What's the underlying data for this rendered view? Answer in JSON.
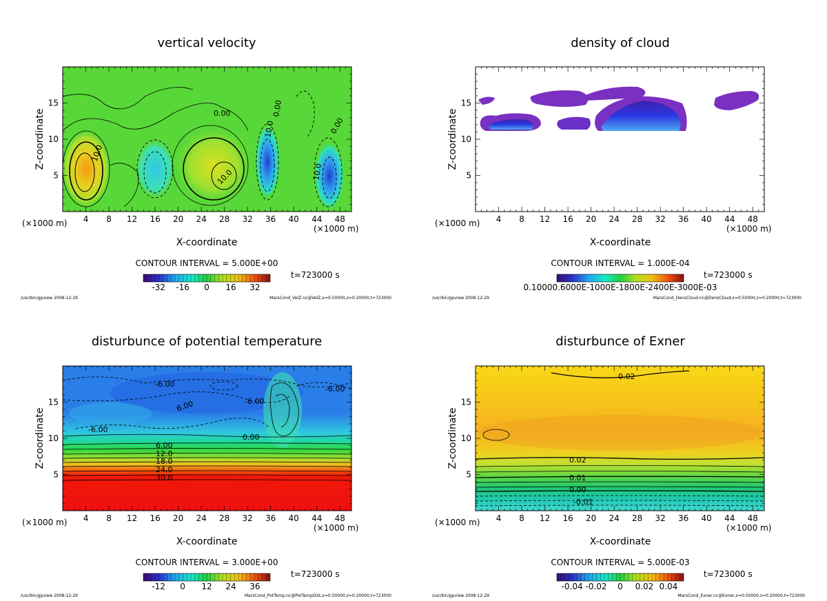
{
  "chart_data": [
    {
      "type": "heatmap",
      "title": "vertical velocity",
      "xlabel": "X-coordinate",
      "ylabel": "Z-coordinate",
      "x_unit_left": "(×1000 m)",
      "x_unit_right": "(×1000 m)",
      "xlim": [
        0,
        50
      ],
      "ylim": [
        0,
        20
      ],
      "xticks": [
        4,
        8,
        12,
        16,
        20,
        24,
        28,
        32,
        36,
        40,
        44,
        48
      ],
      "yticks": [
        5,
        10,
        15
      ],
      "contour_labels": [
        "10.0",
        "10.0",
        "0.00",
        "10.0",
        "10.0",
        "0.00",
        "0.00"
      ],
      "contour_interval": "CONTOUR INTERVAL = 5.000E+00",
      "time": "t=723000 s",
      "colorbar_ticks": [
        "-32",
        "-16",
        "0",
        "16",
        "32"
      ],
      "footer_left": "/usr/bin/gpview  2008-12-29",
      "footer_right": "MarsCond_VelZ.nc@VelZ,x=0:50000,z=0:20000,t=723000"
    },
    {
      "type": "heatmap",
      "title": "density of cloud",
      "xlabel": "X-coordinate",
      "ylabel": "Z-coordinate",
      "x_unit_left": "(×1000 m)",
      "x_unit_right": "(×1000 m)",
      "xlim": [
        0,
        50
      ],
      "ylim": [
        0,
        20
      ],
      "xticks": [
        4,
        8,
        12,
        16,
        20,
        24,
        28,
        32,
        36,
        40,
        44,
        48
      ],
      "yticks": [
        5,
        10,
        15
      ],
      "contour_interval": "CONTOUR INTERVAL = 1.000E-04",
      "time": "t=723000 s",
      "colorbar_ticks_text": "0.10000.6000E-1000E-1800E-2400E-3000E-03",
      "footer_left": "/usr/bin/gpview  2008-12-29",
      "footer_right": "MarsCond_DensCloud.nc@DensCloud,x=0:50000,z=0:20000,t=723000"
    },
    {
      "type": "heatmap",
      "title": "disturbunce of potential temperature",
      "xlabel": "X-coordinate",
      "ylabel": "Z-coordinate",
      "x_unit_left": "(×1000 m)",
      "x_unit_right": "(×1000 m)",
      "xlim": [
        0,
        50
      ],
      "ylim": [
        0,
        20
      ],
      "xticks": [
        4,
        8,
        12,
        16,
        20,
        24,
        28,
        32,
        36,
        40,
        44,
        48
      ],
      "yticks": [
        5,
        10,
        15
      ],
      "contour_labels": [
        "-6.00",
        "-6.00",
        "-6.00",
        "-6.00",
        "6.00",
        "0.00",
        "6.00",
        "12.0",
        "18.0",
        "24.0",
        "30.0"
      ],
      "contour_interval": "CONTOUR INTERVAL = 3.000E+00",
      "time": "t=723000 s",
      "colorbar_ticks": [
        "-12",
        "0",
        "12",
        "24",
        "36"
      ],
      "footer_left": "/usr/bin/gpview  2008-12-29",
      "footer_right": "MarsCond_PotTemp.nc@PotTempDist,x=0:50000,z=0:20000,t=723000"
    },
    {
      "type": "heatmap",
      "title": "disturbunce of Exner",
      "xlabel": "X-coordinate",
      "ylabel": "Z-coordinate",
      "x_unit_left": "(×1000 m)",
      "x_unit_right": "(×1000 m)",
      "xlim": [
        0,
        50
      ],
      "ylim": [
        0,
        20
      ],
      "xticks": [
        4,
        8,
        12,
        16,
        20,
        24,
        28,
        32,
        36,
        40,
        44,
        48
      ],
      "yticks": [
        5,
        10,
        15
      ],
      "contour_labels": [
        "0.02",
        "0.02",
        "0.01",
        "0.00",
        "-0.01"
      ],
      "contour_interval": "CONTOUR INTERVAL = 5.000E-03",
      "time": "t=723000 s",
      "colorbar_ticks": [
        "-0.04",
        "-0.02",
        "0",
        "0.02",
        "0.04"
      ],
      "footer_left": "/usr/bin/gpview  2008-12-29",
      "footer_right": "MarsCond_Exner.nc@Exner,x=0:50000,z=0:20000,t=723000"
    }
  ]
}
